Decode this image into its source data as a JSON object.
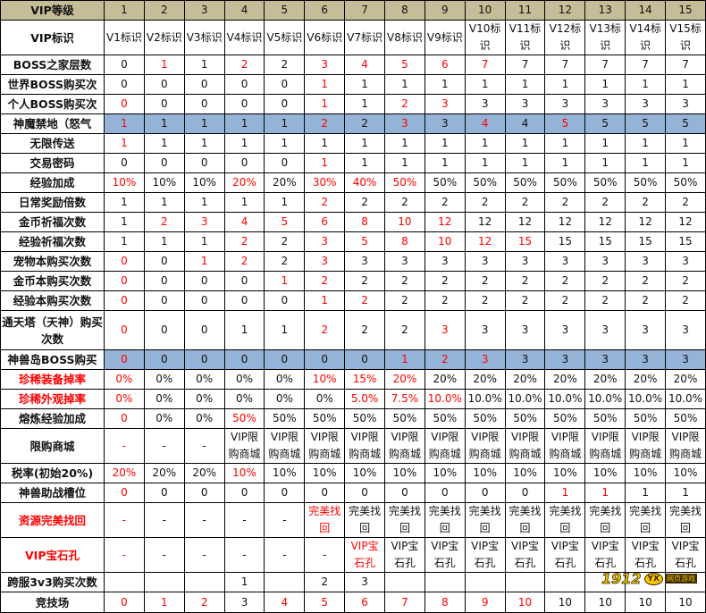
{
  "colors": {
    "header_bg": "#c4bd97",
    "highlight_bg": "#95b3d7",
    "red_text": "#ff0000"
  },
  "rows": [
    {
      "label": "VIP等级",
      "type": "head",
      "cells": [
        "1",
        "2",
        "3",
        "4",
        "5",
        "6",
        "7",
        "8",
        "9",
        "10",
        "11",
        "12",
        "13",
        "14",
        "15"
      ],
      "red": []
    },
    {
      "label": "VIP标识",
      "cells": [
        "V1标识",
        "V2标识",
        "V3标识",
        "V4标识",
        "V5标识",
        "V6标识",
        "V7标识",
        "V8标识",
        "V9标识",
        "V10标识",
        "V11标识",
        "V12标识",
        "V13标识",
        "V14标识",
        "V15标识"
      ],
      "red": []
    },
    {
      "label": "BOSS之家层数",
      "cells": [
        "0",
        "1",
        "1",
        "2",
        "2",
        "3",
        "4",
        "5",
        "6",
        "7",
        "7",
        "7",
        "7",
        "7",
        "7"
      ],
      "red": [
        1,
        3,
        5,
        6,
        7,
        8,
        9
      ]
    },
    {
      "label": "世界BOSS购买次",
      "cells": [
        "0",
        "0",
        "0",
        "0",
        "0",
        "1",
        "1",
        "1",
        "1",
        "1",
        "1",
        "1",
        "1",
        "1",
        "1"
      ],
      "red": [
        5
      ]
    },
    {
      "label": "个人BOSS购买次",
      "cells": [
        "0",
        "0",
        "0",
        "0",
        "0",
        "1",
        "1",
        "2",
        "3",
        "3",
        "3",
        "3",
        "3",
        "3",
        "3"
      ],
      "red": [
        0,
        5,
        7,
        8
      ]
    },
    {
      "label": "神魔禁地（怒气",
      "type": "highlight",
      "cells": [
        "1",
        "1",
        "1",
        "1",
        "1",
        "2",
        "2",
        "3",
        "3",
        "4",
        "4",
        "5",
        "5",
        "5",
        "5"
      ],
      "red": [
        0,
        5,
        7,
        9,
        11
      ]
    },
    {
      "label": "无限传送",
      "cells": [
        "1",
        "1",
        "1",
        "1",
        "1",
        "1",
        "1",
        "1",
        "1",
        "1",
        "1",
        "1",
        "1",
        "1",
        "1"
      ],
      "red": [
        0
      ]
    },
    {
      "label": "交易密码",
      "cells": [
        "0",
        "0",
        "0",
        "0",
        "0",
        "1",
        "1",
        "1",
        "1",
        "1",
        "1",
        "1",
        "1",
        "1",
        "1"
      ],
      "red": [
        5
      ]
    },
    {
      "label": "经验加成",
      "cells": [
        "10%",
        "10%",
        "10%",
        "20%",
        "20%",
        "30%",
        "40%",
        "50%",
        "50%",
        "50%",
        "50%",
        "50%",
        "50%",
        "50%",
        "50%"
      ],
      "red": [
        0,
        3,
        5,
        6,
        7
      ]
    },
    {
      "label": "日常奖励倍数",
      "cells": [
        "1",
        "1",
        "1",
        "1",
        "1",
        "2",
        "2",
        "2",
        "2",
        "2",
        "2",
        "2",
        "2",
        "2",
        "2"
      ],
      "red": [
        5
      ]
    },
    {
      "label": "金币祈福次数",
      "cells": [
        "1",
        "2",
        "3",
        "4",
        "5",
        "6",
        "8",
        "10",
        "12",
        "12",
        "12",
        "12",
        "12",
        "12",
        "12"
      ],
      "red": [
        1,
        2,
        3,
        4,
        5,
        6,
        7,
        8
      ]
    },
    {
      "label": "经验祈福次数",
      "cells": [
        "1",
        "1",
        "1",
        "2",
        "2",
        "3",
        "5",
        "8",
        "10",
        "12",
        "15",
        "15",
        "15",
        "15",
        "15"
      ],
      "red": [
        3,
        5,
        6,
        7,
        8,
        9,
        10
      ]
    },
    {
      "label": "宠物本购买次数",
      "cells": [
        "0",
        "0",
        "1",
        "2",
        "2",
        "3",
        "3",
        "3",
        "3",
        "3",
        "3",
        "3",
        "3",
        "3",
        "3"
      ],
      "red": [
        0,
        2,
        3,
        5
      ]
    },
    {
      "label": "金币本购买次数",
      "cells": [
        "0",
        "0",
        "0",
        "0",
        "1",
        "2",
        "2",
        "2",
        "2",
        "2",
        "2",
        "2",
        "2",
        "2",
        "2"
      ],
      "red": [
        0,
        4,
        5
      ]
    },
    {
      "label": "经验本购买次数",
      "cells": [
        "0",
        "0",
        "0",
        "0",
        "0",
        "1",
        "2",
        "2",
        "2",
        "2",
        "2",
        "2",
        "2",
        "2",
        "2"
      ],
      "red": [
        0,
        5,
        6
      ]
    },
    {
      "label": "通天塔（天神）购买次数",
      "cells": [
        "0",
        "0",
        "0",
        "1",
        "1",
        "2",
        "2",
        "2",
        "3",
        "3",
        "3",
        "3",
        "3",
        "3",
        "3"
      ],
      "red": [
        0,
        5,
        8
      ]
    },
    {
      "label": "神兽岛BOSS购买",
      "type": "highlight",
      "cells": [
        "0",
        "0",
        "0",
        "0",
        "0",
        "0",
        "0",
        "1",
        "2",
        "3",
        "3",
        "3",
        "3",
        "3",
        "3"
      ],
      "red": [
        0,
        7,
        8,
        9
      ]
    },
    {
      "label": "珍稀装备掉率",
      "label_red": true,
      "cells": [
        "0%",
        "0%",
        "0%",
        "0%",
        "0%",
        "10%",
        "15%",
        "20%",
        "20%",
        "20%",
        "20%",
        "20%",
        "20%",
        "20%",
        "20%"
      ],
      "red": [
        0,
        5,
        6,
        7
      ]
    },
    {
      "label": "珍稀外观掉率",
      "label_red": true,
      "cells": [
        "0%",
        "0%",
        "0%",
        "0%",
        "0%",
        "0%",
        "5.0%",
        "7.5%",
        "10.0%",
        "10.0%",
        "10.0%",
        "10.0%",
        "10.0%",
        "10.0%",
        "10.0%"
      ],
      "red": [
        0,
        6,
        7,
        8
      ]
    },
    {
      "label": "熔炼经验加成",
      "cells": [
        "0",
        "0%",
        "0%",
        "50%",
        "50%",
        "50%",
        "50%",
        "50%",
        "50%",
        "50%",
        "50%",
        "50%",
        "50%",
        "50%",
        "50%"
      ],
      "red": [
        0,
        3
      ]
    },
    {
      "label": "限购商城",
      "cells": [
        "-",
        "-",
        "-",
        "VIP限购商城",
        "VIP限购商城",
        "VIP限购商城",
        "VIP限购商城",
        "VIP限购商城",
        "VIP限购商城",
        "VIP限购商城",
        "VIP限购商城",
        "VIP限购商城",
        "VIP限购商城",
        "VIP限购商城",
        "VIP限购商城"
      ],
      "red": [
        0
      ]
    },
    {
      "label": "税率(初始20%)",
      "cells": [
        "20%",
        "20%",
        "20%",
        "10%",
        "10%",
        "10%",
        "10%",
        "10%",
        "10%",
        "10%",
        "10%",
        "10%",
        "10%",
        "10%",
        "10%"
      ],
      "red": [
        0,
        3
      ]
    },
    {
      "label": "神兽助战槽位",
      "cells": [
        "0",
        "0",
        "0",
        "0",
        "0",
        "0",
        "0",
        "0",
        "0",
        "0",
        "0",
        "1",
        "1",
        "1",
        "1"
      ],
      "red": [
        0,
        11,
        12
      ]
    },
    {
      "label": "资源完美找回",
      "label_red": true,
      "cells": [
        "-",
        "-",
        "-",
        "-",
        "-",
        "完美找回",
        "完美找回",
        "完美找回",
        "完美找回",
        "完美找回",
        "完美找回",
        "完美找回",
        "完美找回",
        "完美找回",
        "完美找回"
      ],
      "red": [
        0,
        5
      ]
    },
    {
      "label": "VIP宝石孔",
      "label_red": true,
      "cells": [
        "-",
        "-",
        "-",
        "-",
        "-",
        "-",
        "VIP宝石孔",
        "VIP宝石孔",
        "VIP宝石孔",
        "VIP宝石孔",
        "VIP宝石孔",
        "VIP宝石孔",
        "VIP宝石孔",
        "VIP宝石孔",
        "VIP宝石孔"
      ],
      "red": [
        0,
        6
      ]
    },
    {
      "label": "跨服3v3购买次数",
      "cells": [
        "",
        "",
        "",
        "1",
        "",
        "2",
        "3",
        "",
        "",
        "",
        "",
        "",
        "",
        "",
        ""
      ],
      "red": []
    },
    {
      "label": "竞技场",
      "cells": [
        "0",
        "1",
        "2",
        "3",
        "4",
        "5",
        "6",
        "7",
        "8",
        "9",
        "10",
        "10",
        "10",
        "10",
        "10"
      ],
      "red": [
        0,
        1,
        2,
        4,
        5,
        6,
        7,
        8,
        9,
        10
      ]
    }
  ],
  "watermark": {
    "number": "1912",
    "badge": "YX",
    "subtitle": "网页游戏"
  }
}
